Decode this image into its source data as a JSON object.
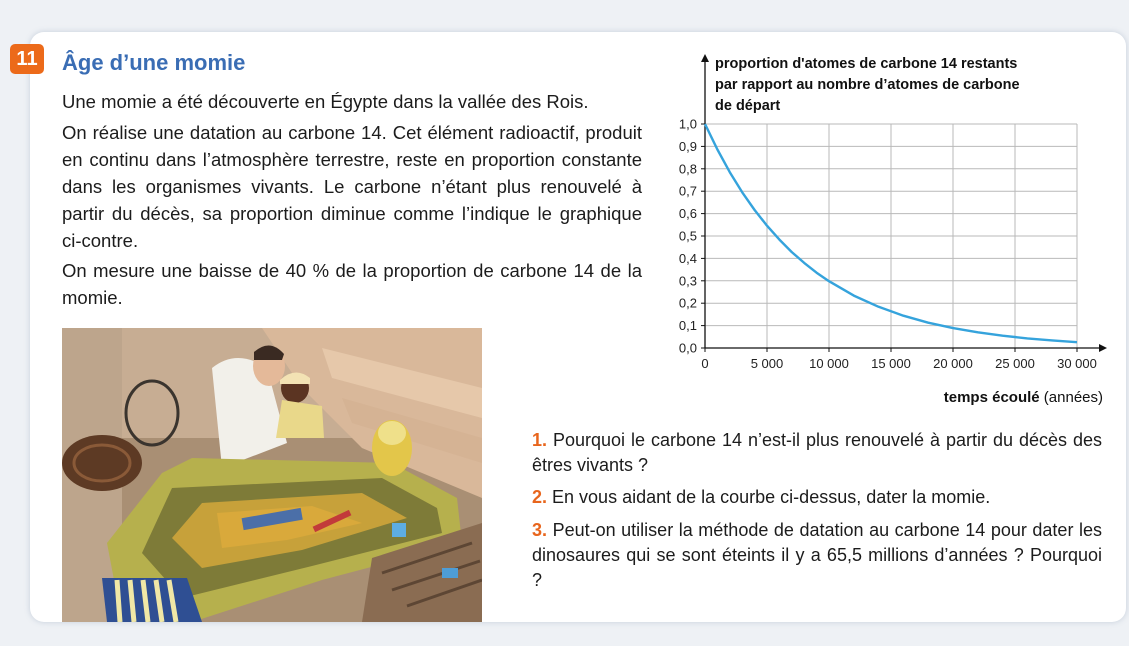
{
  "exercise": {
    "number": "11",
    "title": "Âge d’une momie",
    "paragraphs": [
      "Une momie a été découverte en Égypte dans la vallée des Rois.",
      "On réalise une datation au carbone 14. Cet élément radioactif, produit en continu dans l’atmosphère terrestre, reste en proportion constante dans les organismes vivants. Le carbone n’étant plus renouvelé à partir du décès, sa proportion diminue comme l’indique le graphique ci-contre.",
      "On mesure une baisse de 40 % de la proportion de carbone 14 de la momie."
    ],
    "questions": [
      {
        "num": "1.",
        "text": "Pourquoi le carbone 14 n’est-il plus renouvelé à partir du décès des êtres vivants ?"
      },
      {
        "num": "2.",
        "text": "En vous aidant de la courbe ci-dessus, dater la momie."
      },
      {
        "num": "3.",
        "text": "Peut-on utiliser la méthode de datation au carbone 14 pour dater les dinosaures qui se sont éteints il y a 65,5 millions d’années ? Pourquoi ?"
      }
    ]
  },
  "colors": {
    "badge": "#ec6a1a",
    "title": "#3a6db4",
    "curve": "#35a3dc",
    "question_number": "#e8651c"
  },
  "chart_data": {
    "type": "line",
    "ylabel_lines": [
      "proportion d'atomes de carbone 14 restants",
      "par rapport au nombre d’atomes de carbone",
      "de départ"
    ],
    "xlabel_bold": "temps écoulé",
    "xlabel_unit": "(années)",
    "xlim": [
      0,
      30000
    ],
    "ylim": [
      0,
      1.0
    ],
    "x_ticks": [
      0,
      5000,
      10000,
      15000,
      20000,
      25000,
      30000
    ],
    "x_tick_labels": [
      "0",
      "5 000",
      "10 000",
      "15 000",
      "20 000",
      "25 000",
      "30 000"
    ],
    "y_ticks": [
      0,
      0.1,
      0.2,
      0.3,
      0.4,
      0.5,
      0.6,
      0.7,
      0.8,
      0.9,
      1.0
    ],
    "y_tick_labels": [
      "0,0",
      "0,1",
      "0,2",
      "0,3",
      "0,4",
      "0,5",
      "0,6",
      "0,7",
      "0,8",
      "0,9",
      "1,0"
    ],
    "grid": true,
    "series": [
      {
        "x": [
          0,
          1000,
          2000,
          3000,
          4000,
          5000,
          6000,
          7000,
          8000,
          9000,
          10000,
          12000,
          14000,
          16000,
          18000,
          20000,
          22000,
          24000,
          26000,
          28000,
          30000
        ],
        "y": [
          1.0,
          0.886,
          0.785,
          0.695,
          0.616,
          0.546,
          0.484,
          0.428,
          0.38,
          0.336,
          0.298,
          0.234,
          0.184,
          0.144,
          0.113,
          0.089,
          0.07,
          0.055,
          0.043,
          0.034,
          0.026
        ]
      }
    ]
  }
}
